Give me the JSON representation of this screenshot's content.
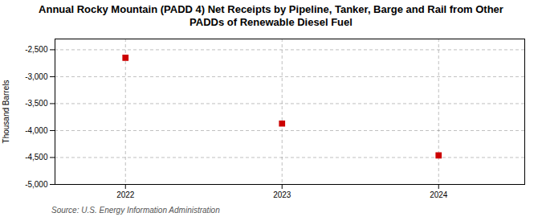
{
  "chart_data": {
    "type": "scatter",
    "title": "Annual Rocky Mountain (PADD 4) Net Receipts by Pipeline, Tanker, Barge and Rail from Other\nPADDs of Renewable Diesel Fuel",
    "ylabel": "Thousand Barrels",
    "source": "Source: U.S. Energy Information Administration",
    "x": [
      2022,
      2023,
      2024
    ],
    "values": [
      -2650,
      -3870,
      -4460
    ],
    "color": "#cc0000",
    "marker": "square",
    "xlim": [
      2021.55,
      2024.55
    ],
    "xticks": [
      2022,
      2023,
      2024
    ],
    "ylim": [
      -5000,
      -2300
    ],
    "yticks": [
      {
        "value": -5000,
        "label": "-5,000"
      },
      {
        "value": -4500,
        "label": "-4,500"
      },
      {
        "value": -4000,
        "label": "-4,000"
      },
      {
        "value": -3500,
        "label": "-3,500"
      },
      {
        "value": -3000,
        "label": "-3,000"
      },
      {
        "value": -2500,
        "label": "-2,500"
      }
    ],
    "grid": true
  }
}
